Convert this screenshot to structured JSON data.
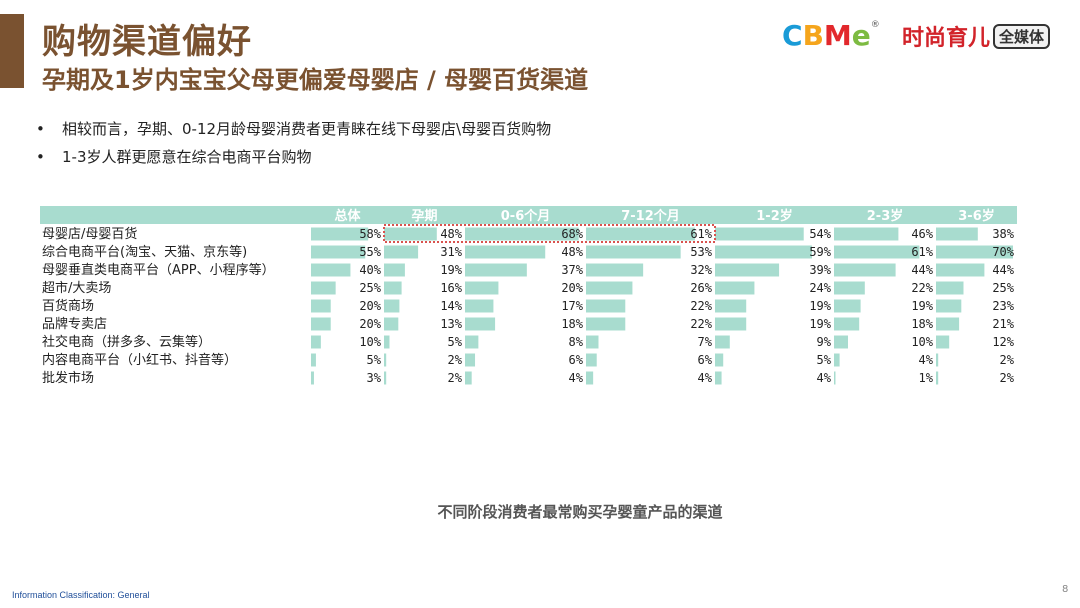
{
  "header": {
    "title": "购物渠道偏好",
    "subtitle": "孕期及1岁内宝宝父母更偏爱母婴店 / 母婴百货渠道"
  },
  "logos": {
    "cbme_letters": [
      "C",
      "B",
      "M",
      "e"
    ],
    "cbme_colors": [
      "#1a9bd7",
      "#f5a51c",
      "#e2282c",
      "#7dbb42"
    ],
    "cbme_mark": "®",
    "shishang_main": "时尚育儿",
    "shishang_box": "全媒体"
  },
  "bullets": [
    "相较而言，孕期、0-12月龄母婴消费者更青睐在线下母婴店\\母婴百货购物",
    "1-3岁人群更愿意在综合电商平台购物"
  ],
  "bullet_symbol": "•",
  "chart_data": {
    "type": "table",
    "columns": [
      "总体",
      "孕期",
      "0-6个月",
      "7-12个月",
      "1-2岁",
      "2-3岁",
      "3-6岁"
    ],
    "rows": [
      {
        "label": "母婴店/母婴百货",
        "values": [
          58,
          48,
          68,
          61,
          54,
          46,
          38
        ]
      },
      {
        "label": "综合电商平台(淘宝、天猫、京东等)",
        "values": [
          55,
          31,
          48,
          53,
          59,
          61,
          70
        ]
      },
      {
        "label": "母婴垂直类电商平台（APP、小程序等）",
        "values": [
          40,
          19,
          37,
          32,
          39,
          44,
          44
        ]
      },
      {
        "label": "超市/大卖场",
        "values": [
          25,
          16,
          20,
          26,
          24,
          22,
          25
        ]
      },
      {
        "label": "百货商场",
        "values": [
          20,
          14,
          17,
          22,
          19,
          19,
          23
        ]
      },
      {
        "label": "品牌专卖店",
        "values": [
          20,
          13,
          18,
          22,
          19,
          18,
          21
        ]
      },
      {
        "label": "社交电商（拼多多、云集等）",
        "values": [
          10,
          5,
          8,
          7,
          9,
          10,
          12
        ]
      },
      {
        "label": "内容电商平台（小红书、抖音等）",
        "values": [
          5,
          2,
          6,
          6,
          5,
          4,
          2
        ]
      },
      {
        "label": "批发市场",
        "values": [
          3,
          2,
          4,
          4,
          4,
          1,
          2
        ]
      }
    ],
    "value_suffix": "%",
    "max_value": 70,
    "highlight_row": 0,
    "highlight_columns": [
      1,
      2,
      3
    ],
    "bar_color": "#a8dccf",
    "header_color": "#a8dccf",
    "highlight_color": "#d9534f"
  },
  "caption": "不同阶段消费者最常购买孕婴童产品的渠道",
  "footer": {
    "classification": "Information Classification: General",
    "page_number": "8"
  }
}
